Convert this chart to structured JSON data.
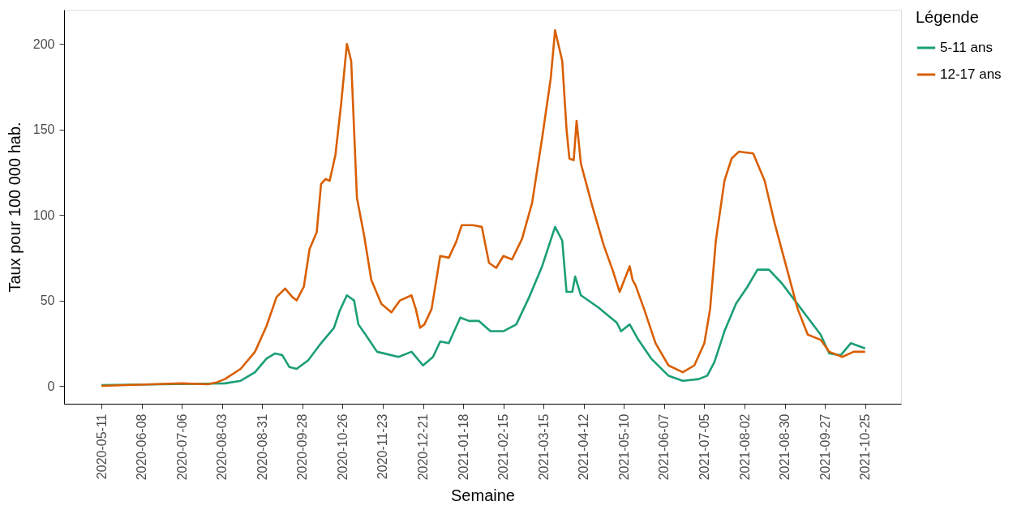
{
  "chart_data": {
    "type": "line",
    "xlabel": "Semaine",
    "ylabel": "Taux pour 100 000 hab.",
    "legend_title": "Légende",
    "legend": "right",
    "grid": false,
    "line_style": "solid",
    "marker": "none",
    "xlim": [
      "2020-04-15",
      "2021-11-19"
    ],
    "xticks": [
      "2020-05-11",
      "2020-06-08",
      "2020-07-06",
      "2020-08-03",
      "2020-08-31",
      "2020-09-28",
      "2020-10-26",
      "2020-11-23",
      "2020-12-21",
      "2021-01-18",
      "2021-02-15",
      "2021-03-15",
      "2021-04-12",
      "2021-05-10",
      "2021-06-07",
      "2021-07-05",
      "2021-08-02",
      "2021-08-30",
      "2021-09-27",
      "2021-10-25"
    ],
    "ylim": [
      -10.4,
      220
    ],
    "yticks": [
      0,
      50,
      100,
      150,
      200
    ],
    "series": [
      {
        "name": "5-11 ans",
        "color": "#1b9e77",
        "x": [
          "2020-05-11",
          "2020-08-05",
          "2020-08-16",
          "2020-08-26",
          "2020-09-03",
          "2020-09-09",
          "2020-09-14",
          "2020-09-19",
          "2020-09-24",
          "2020-10-02",
          "2020-10-11",
          "2020-10-20",
          "2020-10-24",
          "2020-10-29",
          "2020-11-03",
          "2020-11-06",
          "2020-11-11",
          "2020-11-19",
          "2020-12-04",
          "2020-12-13",
          "2020-12-16",
          "2020-12-21",
          "2020-12-28",
          "2021-01-02",
          "2021-01-08",
          "2021-01-16",
          "2021-01-22",
          "2021-01-29",
          "2021-02-06",
          "2021-02-15",
          "2021-02-24",
          "2021-03-05",
          "2021-03-14",
          "2021-03-23",
          "2021-03-28",
          "2021-03-31",
          "2021-04-04",
          "2021-04-06",
          "2021-04-10",
          "2021-04-22",
          "2021-05-05",
          "2021-05-08",
          "2021-05-14",
          "2021-05-20",
          "2021-05-29",
          "2021-06-10",
          "2021-06-20",
          "2021-07-01",
          "2021-07-07",
          "2021-07-12",
          "2021-07-19",
          "2021-07-27",
          "2021-08-04",
          "2021-08-11",
          "2021-08-19",
          "2021-08-28",
          "2021-09-06",
          "2021-09-15",
          "2021-09-24",
          "2021-09-30",
          "2021-10-08",
          "2021-10-15",
          "2021-10-25"
        ],
        "values": [
          0.5,
          1.5,
          3,
          8,
          16,
          19,
          18,
          11,
          10,
          15,
          25,
          34,
          44,
          53,
          50,
          36,
          30,
          20,
          17,
          20,
          17,
          12,
          17,
          26,
          25,
          40,
          38,
          38,
          32,
          32,
          36,
          52,
          70,
          93,
          85,
          55,
          55,
          64,
          53,
          46,
          37,
          32,
          36,
          27,
          16,
          6,
          3,
          4,
          6,
          14,
          32,
          48,
          58,
          68,
          68,
          60,
          50,
          40,
          30,
          19,
          18,
          25,
          22
        ]
      },
      {
        "name": "12-17 ans",
        "color": "#d95f02",
        "x": [
          "2020-05-11",
          "2020-06-15",
          "2020-07-06",
          "2020-07-24",
          "2020-07-30",
          "2020-08-05",
          "2020-08-16",
          "2020-08-26",
          "2020-09-03",
          "2020-09-10",
          "2020-09-16",
          "2020-09-21",
          "2020-09-24",
          "2020-09-29",
          "2020-10-03",
          "2020-10-08",
          "2020-10-11",
          "2020-10-14",
          "2020-10-17",
          "2020-10-21",
          "2020-10-25",
          "2020-10-29",
          "2020-11-01",
          "2020-11-05",
          "2020-11-10",
          "2020-11-15",
          "2020-11-22",
          "2020-11-29",
          "2020-12-05",
          "2020-12-13",
          "2020-12-16",
          "2020-12-19",
          "2020-12-22",
          "2020-12-27",
          "2021-01-02",
          "2021-01-08",
          "2021-01-13",
          "2021-01-17",
          "2021-01-25",
          "2021-01-31",
          "2021-02-05",
          "2021-02-10",
          "2021-02-15",
          "2021-02-21",
          "2021-02-28",
          "2021-03-07",
          "2021-03-14",
          "2021-03-20",
          "2021-03-23",
          "2021-03-28",
          "2021-03-31",
          "2021-04-02",
          "2021-04-05",
          "2021-04-07",
          "2021-04-10",
          "2021-04-18",
          "2021-04-26",
          "2021-05-02",
          "2021-05-07",
          "2021-05-14",
          "2021-05-16",
          "2021-05-18",
          "2021-05-24",
          "2021-06-01",
          "2021-06-10",
          "2021-06-20",
          "2021-06-28",
          "2021-07-05",
          "2021-07-09",
          "2021-07-13",
          "2021-07-19",
          "2021-07-24",
          "2021-07-29",
          "2021-08-08",
          "2021-08-16",
          "2021-08-23",
          "2021-08-31",
          "2021-09-08",
          "2021-09-15",
          "2021-09-24",
          "2021-09-30",
          "2021-10-09",
          "2021-10-17",
          "2021-10-25"
        ],
        "values": [
          0,
          1,
          1.5,
          1,
          2,
          4,
          10,
          20,
          35,
          52,
          57,
          52,
          50,
          58,
          80,
          90,
          118,
          121,
          120,
          135,
          165,
          200,
          190,
          110,
          88,
          62,
          48,
          43,
          50,
          53,
          45,
          34,
          36,
          45,
          76,
          75,
          84,
          94,
          94,
          93,
          72,
          69,
          76,
          74,
          86,
          107,
          145,
          180,
          208,
          190,
          150,
          133,
          132,
          155,
          130,
          105,
          82,
          68,
          55,
          70,
          62,
          59,
          45,
          25,
          12,
          8,
          12,
          25,
          45,
          85,
          120,
          133,
          137,
          136,
          120,
          95,
          70,
          45,
          30,
          27,
          20,
          17,
          20,
          20
        ]
      }
    ]
  }
}
